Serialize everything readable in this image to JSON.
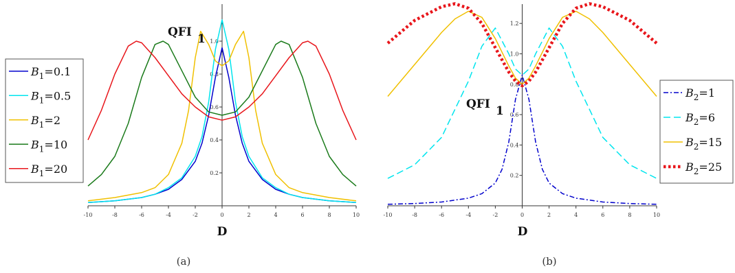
{
  "chart_data": [
    {
      "type": "line",
      "caption": "(a)",
      "xlabel": "D",
      "ylabel_main": "QFI",
      "ylabel_sub": "1",
      "xlim": [
        -10,
        10
      ],
      "ylim": [
        0,
        1.2
      ],
      "xticks": [
        -10,
        -8,
        -6,
        -4,
        -2,
        0,
        2,
        4,
        6,
        8,
        10
      ],
      "yticks": [
        0.2,
        0.4,
        0.6,
        0.8,
        1.0
      ],
      "ytick_labels": [
        "0.2",
        "0.4",
        "0.6",
        "0.8",
        "1.0"
      ],
      "legend_position": "left",
      "series": [
        {
          "name_var": "B",
          "name_sub": "1",
          "name_val": "=0.1",
          "color": "#0000cc",
          "dash": "solid",
          "x": [
            -10,
            -8,
            -6,
            -5,
            -4,
            -3,
            -2,
            -1.5,
            -1,
            -0.5,
            0,
            0.5,
            1,
            1.5,
            2,
            3,
            4,
            5,
            6,
            8,
            10
          ],
          "y": [
            0.02,
            0.03,
            0.05,
            0.07,
            0.1,
            0.16,
            0.27,
            0.38,
            0.55,
            0.78,
            0.96,
            0.78,
            0.55,
            0.38,
            0.27,
            0.16,
            0.1,
            0.07,
            0.05,
            0.03,
            0.02
          ]
        },
        {
          "name_var": "B",
          "name_sub": "1",
          "name_val": "=0.5",
          "color": "#00e5ee",
          "dash": "solid",
          "x": [
            -10,
            -8,
            -6,
            -5,
            -4,
            -3,
            -2,
            -1.5,
            -1,
            -0.5,
            0,
            0.5,
            1,
            1.5,
            2,
            3,
            4,
            5,
            6,
            8,
            10
          ],
          "y": [
            0.02,
            0.03,
            0.05,
            0.07,
            0.11,
            0.17,
            0.3,
            0.42,
            0.63,
            0.95,
            1.13,
            0.95,
            0.63,
            0.42,
            0.3,
            0.17,
            0.11,
            0.07,
            0.05,
            0.03,
            0.02
          ]
        },
        {
          "name_var": "B",
          "name_sub": "1",
          "name_val": "=2",
          "color": "#f0c000",
          "dash": "solid",
          "x": [
            -10,
            -8,
            -6,
            -5,
            -4,
            -3,
            -2.5,
            -2,
            -1.6,
            -1,
            -0.5,
            0,
            0.5,
            1,
            1.6,
            2,
            2.5,
            3,
            4,
            5,
            6,
            8,
            10
          ],
          "y": [
            0.03,
            0.05,
            0.08,
            0.11,
            0.19,
            0.38,
            0.58,
            0.9,
            1.06,
            0.98,
            0.88,
            0.85,
            0.88,
            0.98,
            1.06,
            0.9,
            0.58,
            0.38,
            0.19,
            0.11,
            0.08,
            0.05,
            0.03
          ]
        },
        {
          "name_var": "B",
          "name_sub": "1",
          "name_val": "=10",
          "color": "#1a7a1a",
          "dash": "solid",
          "x": [
            -10,
            -9,
            -8,
            -7,
            -6,
            -5,
            -4.4,
            -4,
            -3,
            -2,
            -1,
            0,
            1,
            2,
            3,
            4,
            4.4,
            5,
            6,
            7,
            8,
            9,
            10
          ],
          "y": [
            0.12,
            0.19,
            0.3,
            0.5,
            0.78,
            0.98,
            1.0,
            0.98,
            0.82,
            0.66,
            0.57,
            0.55,
            0.57,
            0.66,
            0.82,
            0.98,
            1.0,
            0.98,
            0.78,
            0.5,
            0.3,
            0.19,
            0.12
          ]
        },
        {
          "name_var": "B",
          "name_sub": "1",
          "name_val": "=20",
          "color": "#e8161b",
          "dash": "solid",
          "x": [
            -10,
            -9,
            -8,
            -7,
            -6.4,
            -6,
            -5,
            -4,
            -3,
            -2,
            -1,
            0,
            1,
            2,
            3,
            4,
            5,
            6,
            6.4,
            7,
            8,
            9,
            10
          ],
          "y": [
            0.4,
            0.58,
            0.8,
            0.97,
            1.0,
            0.99,
            0.9,
            0.79,
            0.68,
            0.6,
            0.54,
            0.52,
            0.54,
            0.6,
            0.68,
            0.79,
            0.9,
            0.99,
            1.0,
            0.97,
            0.8,
            0.58,
            0.4
          ]
        }
      ]
    },
    {
      "type": "line",
      "caption": "(b)",
      "xlabel": "D",
      "ylabel_main": "QFI",
      "ylabel_sub": "1",
      "xlim": [
        -10,
        10
      ],
      "ylim": [
        0,
        1.3
      ],
      "xticks": [
        -10,
        -8,
        -6,
        -4,
        -2,
        0,
        2,
        4,
        6,
        8,
        10
      ],
      "yticks": [
        0.2,
        0.4,
        0.6,
        0.8,
        1.0,
        1.2
      ],
      "ytick_labels": [
        "0.2",
        "0.4",
        "0.6",
        "0.8",
        "1.0",
        "1.2"
      ],
      "legend_position": "right",
      "series": [
        {
          "name_var": "B",
          "name_sub": "2",
          "name_val": "=1",
          "color": "#0000cc",
          "dash": "dashdot",
          "x": [
            -10,
            -8,
            -6,
            -4,
            -3,
            -2,
            -1.5,
            -1,
            -0.5,
            0,
            0.5,
            1,
            1.5,
            2,
            3,
            4,
            6,
            8,
            10
          ],
          "y": [
            0.01,
            0.015,
            0.025,
            0.05,
            0.08,
            0.15,
            0.24,
            0.42,
            0.7,
            0.86,
            0.7,
            0.42,
            0.24,
            0.15,
            0.08,
            0.05,
            0.025,
            0.015,
            0.01
          ]
        },
        {
          "name_var": "B",
          "name_sub": "2",
          "name_val": "=6",
          "color": "#00e5ee",
          "dash": "dashed",
          "x": [
            -10,
            -8,
            -6,
            -4,
            -3,
            -2,
            -1,
            -0.5,
            0,
            0.5,
            1,
            2,
            3,
            4,
            6,
            8,
            10
          ],
          "y": [
            0.18,
            0.27,
            0.45,
            0.82,
            1.05,
            1.17,
            1.0,
            0.9,
            0.86,
            0.9,
            1.0,
            1.17,
            1.05,
            0.82,
            0.45,
            0.27,
            0.18
          ]
        },
        {
          "name_var": "B",
          "name_sub": "2",
          "name_val": "=15",
          "color": "#f0c000",
          "dash": "solid",
          "x": [
            -10,
            -8,
            -6,
            -5,
            -4,
            -3,
            -2,
            -1,
            -0.5,
            0,
            0.5,
            1,
            2,
            3,
            4,
            5,
            6,
            8,
            10
          ],
          "y": [
            0.72,
            0.93,
            1.14,
            1.23,
            1.28,
            1.24,
            1.1,
            0.92,
            0.84,
            0.8,
            0.84,
            0.92,
            1.1,
            1.24,
            1.28,
            1.23,
            1.14,
            0.93,
            0.72
          ]
        },
        {
          "name_var": "B",
          "name_sub": "2",
          "name_val": "=25",
          "color": "#e8161b",
          "dash": "dotted",
          "x": [
            -10,
            -8,
            -6,
            -5,
            -4,
            -3,
            -2,
            -1,
            -0.5,
            0,
            0.5,
            1,
            2,
            3,
            4,
            5,
            6,
            8,
            10
          ],
          "y": [
            1.07,
            1.22,
            1.31,
            1.33,
            1.3,
            1.2,
            1.04,
            0.88,
            0.82,
            0.79,
            0.82,
            0.88,
            1.04,
            1.2,
            1.3,
            1.33,
            1.31,
            1.22,
            1.07
          ]
        }
      ]
    }
  ]
}
